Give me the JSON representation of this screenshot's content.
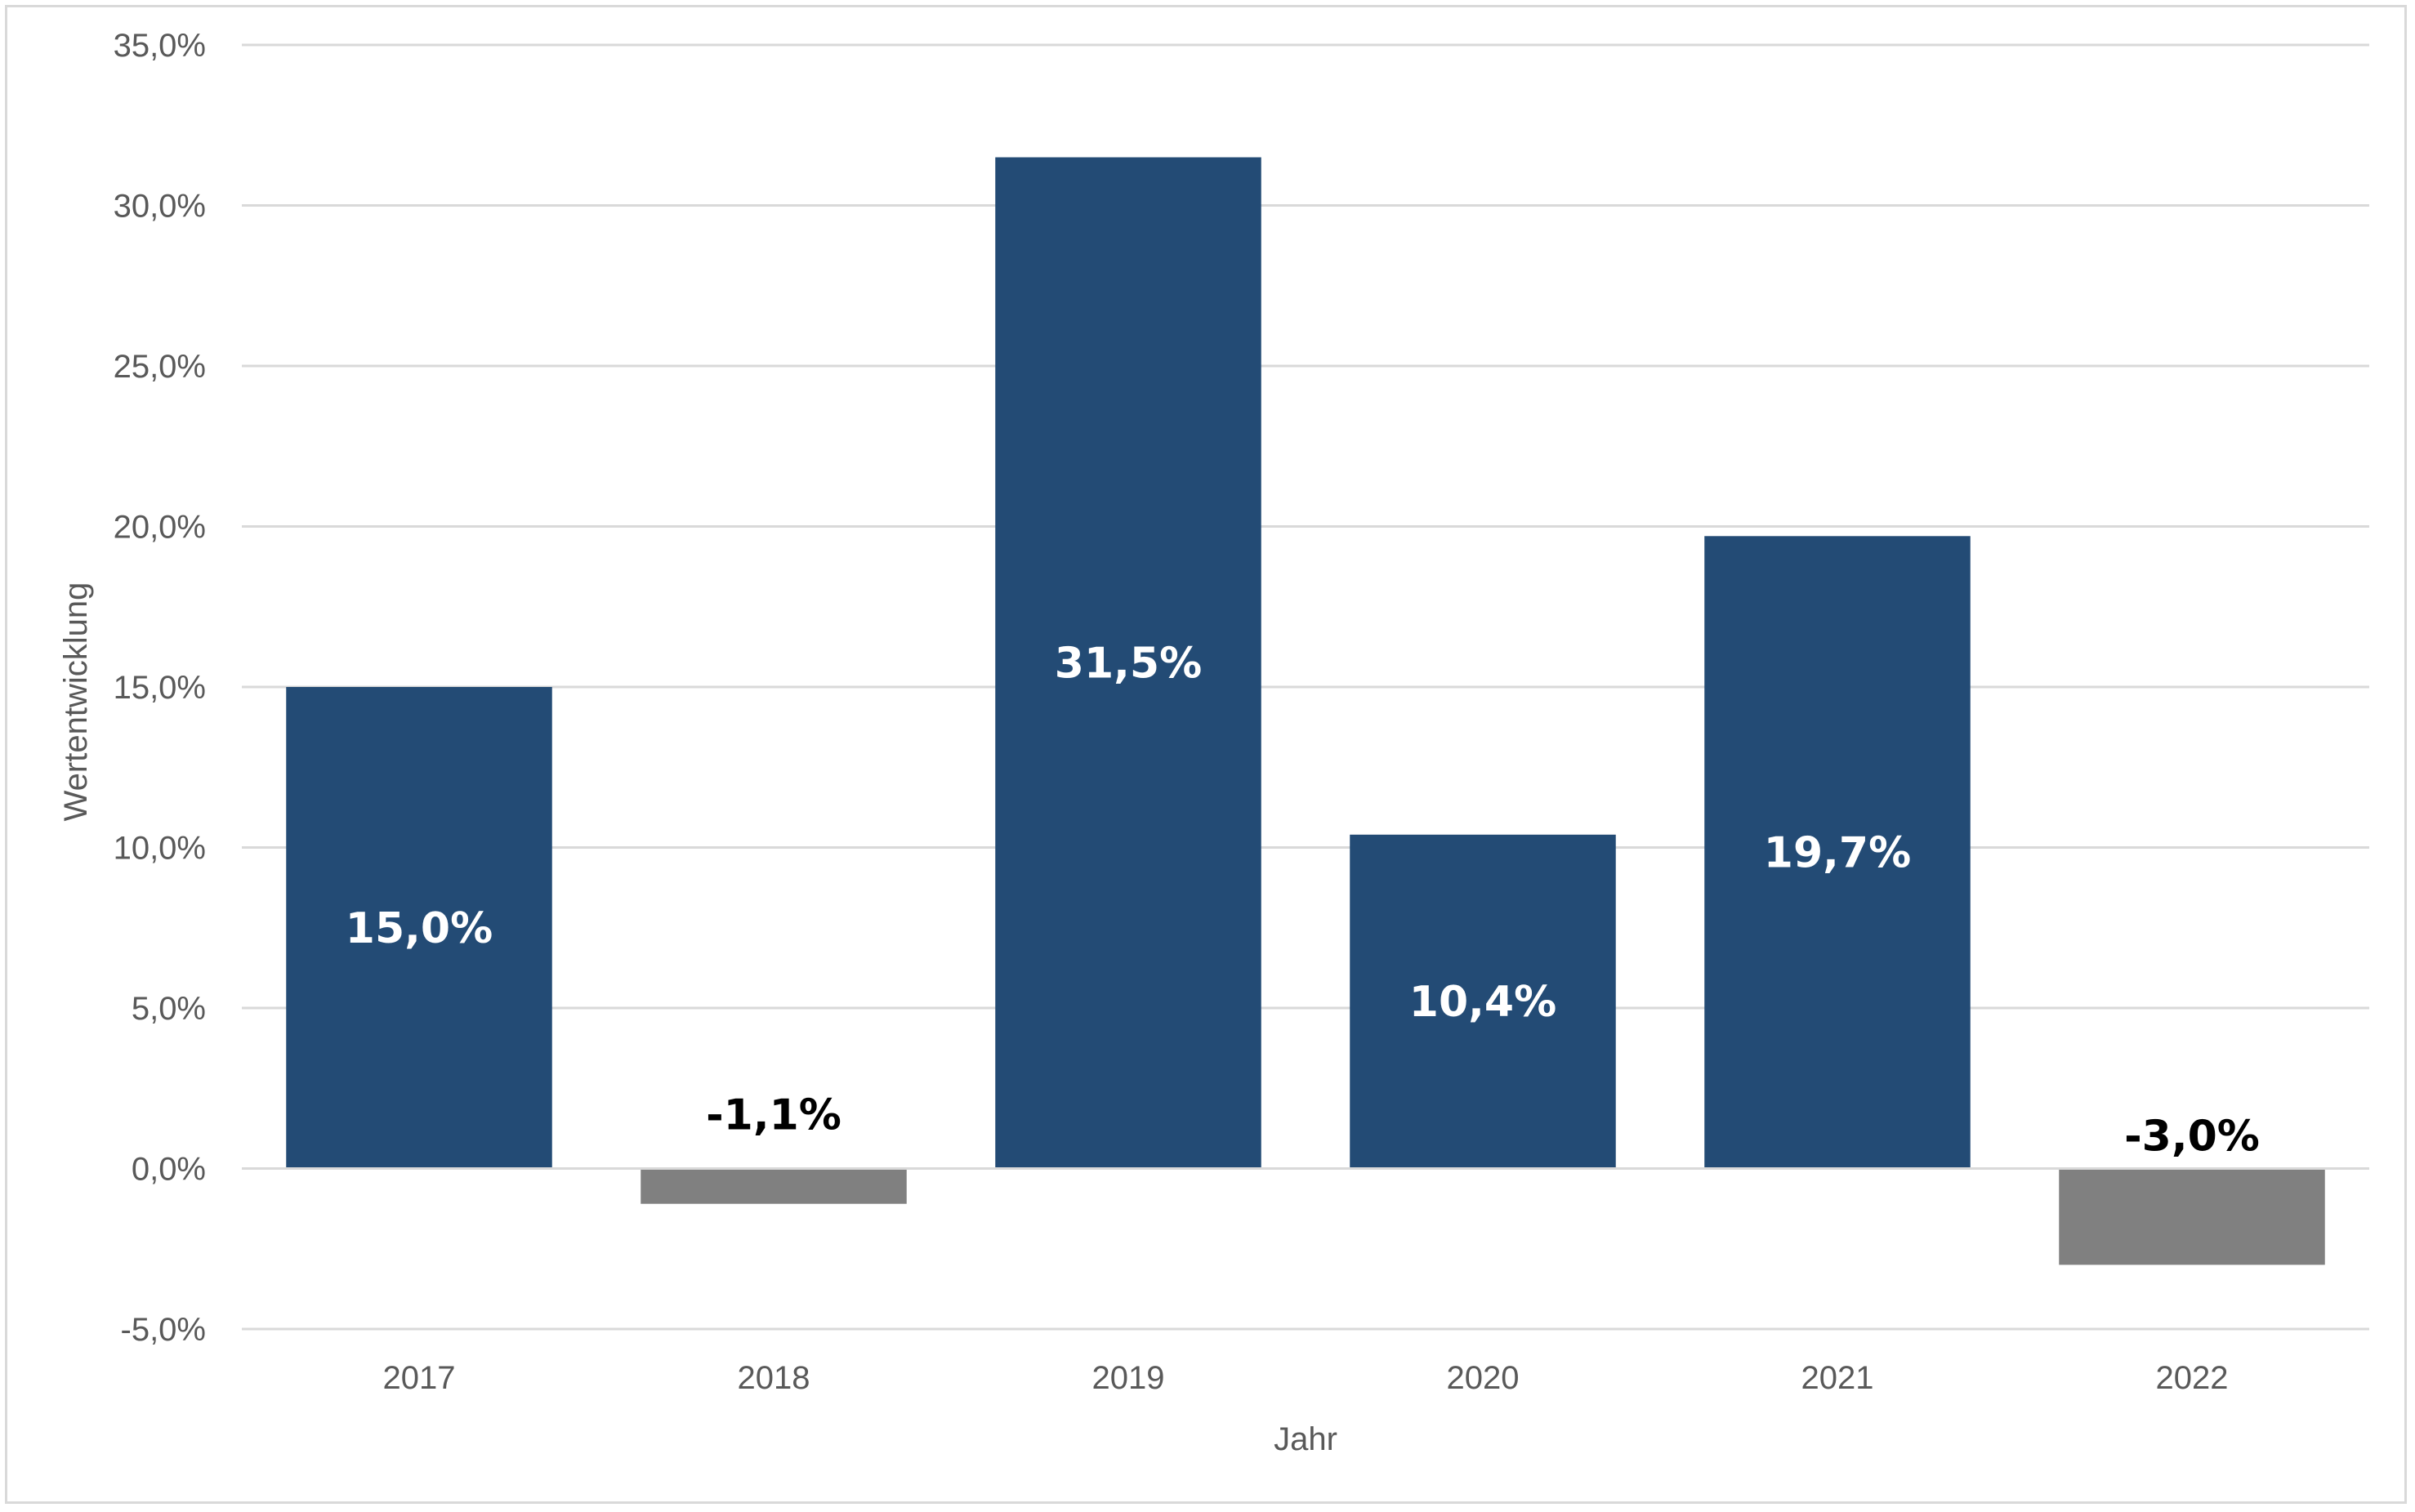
{
  "chart_data": {
    "type": "bar",
    "title": "",
    "xlabel": "Jahr",
    "ylabel": "Wertentwicklung",
    "categories": [
      "2017",
      "2018",
      "2019",
      "2020",
      "2021",
      "2022"
    ],
    "values": [
      15.0,
      -1.1,
      31.5,
      10.4,
      19.7,
      -3.0
    ],
    "data_labels": [
      "15,0%",
      "-1,1%",
      "31,5%",
      "10,4%",
      "19,7%",
      "-3,0%"
    ],
    "ylim": [
      -5,
      35
    ],
    "yticks": [
      -5,
      0,
      5,
      10,
      15,
      20,
      25,
      30,
      35
    ],
    "ytick_labels": [
      "-5,0%",
      "0,0%",
      "5,0%",
      "10,0%",
      "15,0%",
      "20,0%",
      "25,0%",
      "30,0%",
      "35,0%"
    ],
    "grid": true,
    "legend": "none",
    "colors": {
      "positive_bar": "#234b75",
      "negative_bar": "#808080",
      "positive_label": "#ffffff",
      "negative_label": "#000000",
      "gridline": "#d9d9d9",
      "tick_text": "#595959"
    }
  }
}
